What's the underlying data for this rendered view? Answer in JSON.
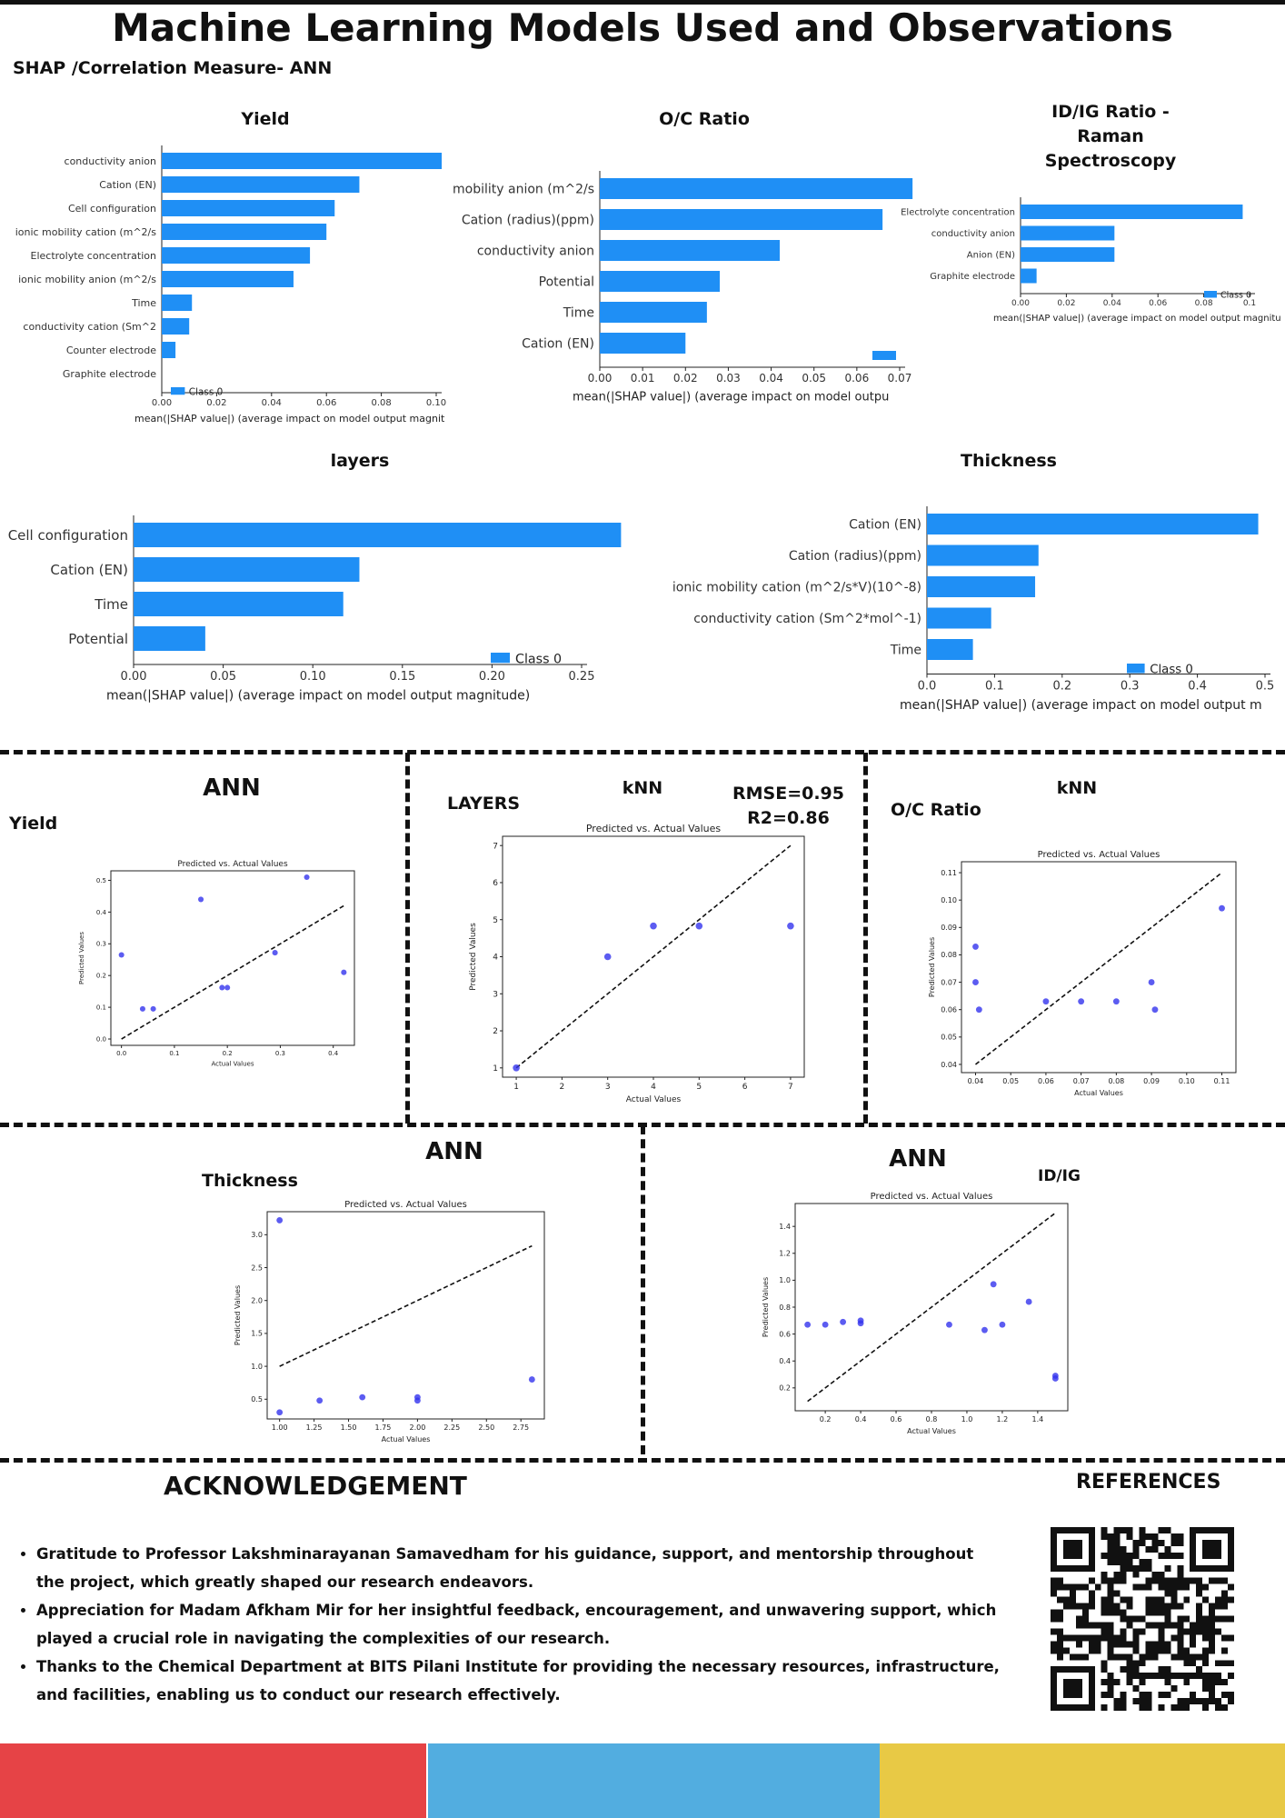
{
  "page": {
    "title": "Machine Learning Models Used and  Observations",
    "subtitle": "SHAP /Correlation Measure- ANN",
    "colors": {
      "bar": "#1f8ff5",
      "point": "#3333ee",
      "footer_red": "#e64346",
      "footer_blue": "#52ade0",
      "footer_yellow": "#e8c945"
    }
  },
  "shap_charts": [
    {
      "id": "yield",
      "title": "Yield",
      "xlabel": "mean(|SHAP value|) (average impact on model output magnit",
      "legend": "Class 0",
      "xticks": [
        "0.00",
        "0.02",
        "0.04",
        "0.06",
        "0.08",
        "0.10"
      ],
      "xmax": 0.1,
      "features": [
        "conductivity anion",
        "Cation (EN)",
        "Cell configuration",
        "ionic mobility cation (m^2/s",
        "Electrolyte concentration",
        "ionic mobility anion (m^2/s",
        "Time",
        "conductivity cation (Sm^2",
        "Counter electrode",
        "Graphite electrode"
      ],
      "values": [
        0.102,
        0.072,
        0.063,
        0.06,
        0.054,
        0.048,
        0.011,
        0.01,
        0.005,
        0.0
      ]
    },
    {
      "id": "oc",
      "title": "O/C Ratio",
      "xlabel": "mean(|SHAP value|) (average impact on model outpu",
      "legend": "",
      "xticks": [
        "0.00",
        "0.01",
        "0.02",
        "0.03",
        "0.04",
        "0.05",
        "0.06",
        "0.07"
      ],
      "xmax": 0.07,
      "features": [
        "mobility anion (m^2/s",
        "Cation (radius)(ppm)",
        "conductivity anion",
        "Potential",
        "Time",
        "Cation (EN)"
      ],
      "values": [
        0.073,
        0.066,
        0.042,
        0.028,
        0.025,
        0.02
      ]
    },
    {
      "id": "idig",
      "title": "ID/IG Ratio - Raman Spectroscopy",
      "title_lines": [
        "ID/IG Ratio -",
        "Raman",
        "Spectroscopy"
      ],
      "xlabel": "mean(|SHAP value|) (average impact on model output magnitu",
      "legend": "Class 0",
      "xticks": [
        "0.00",
        "0.02",
        "0.04",
        "0.06",
        "0.08",
        "0.1"
      ],
      "xmax": 0.1,
      "features": [
        "Electrolyte concentration",
        "conductivity anion",
        "Anion (EN)",
        "Graphite electrode"
      ],
      "values": [
        0.097,
        0.041,
        0.041,
        0.007
      ]
    },
    {
      "id": "layers",
      "title": "layers",
      "xlabel": "mean(|SHAP value|) (average impact on model output magnitude)",
      "legend": "Class 0",
      "xticks": [
        "0.00",
        "0.05",
        "0.10",
        "0.15",
        "0.20",
        "0.25"
      ],
      "xmax": 0.25,
      "features": [
        "Cell configuration",
        "Cation (EN)",
        "Time",
        "Potential"
      ],
      "values": [
        0.272,
        0.126,
        0.117,
        0.04
      ]
    },
    {
      "id": "thickness",
      "title": "Thickness",
      "xlabel": "mean(|SHAP value|) (average impact on model output m",
      "legend": "Class 0",
      "xticks": [
        "0.0",
        "0.1",
        "0.2",
        "0.3",
        "0.4",
        "0.5"
      ],
      "xmax": 0.5,
      "features": [
        "Cation (EN)",
        "Cation (radius)(ppm)",
        "ionic mobility cation (m^2/s*V)(10^-8)",
        "conductivity cation (Sm^2*mol^-1)",
        "Time"
      ],
      "values": [
        0.49,
        0.165,
        0.16,
        0.095,
        0.068
      ]
    }
  ],
  "scatter_panels": [
    {
      "id": "ann-yield",
      "model": "ANN",
      "target": "Yield",
      "metric": "",
      "plot_title": "Predicted vs. Actual Values",
      "xlabel": "Actual Values",
      "ylabel": "Predicted Values",
      "xlim": [
        -0.02,
        0.44
      ],
      "ylim": [
        -0.02,
        0.53
      ],
      "xticks": [
        0.0,
        0.1,
        0.2,
        0.3,
        0.4
      ],
      "yticks": [
        0.0,
        0.1,
        0.2,
        0.3,
        0.4,
        0.5
      ],
      "tick_labels_x": [
        "0.0",
        "0.1",
        "0.2",
        "0.3",
        "0.4"
      ],
      "tick_labels_y": [
        "0.0",
        "0.1",
        "0.2",
        "0.3",
        "0.4",
        "0.5"
      ],
      "line": [
        [
          0.0,
          0.0
        ],
        [
          0.42,
          0.42
        ]
      ],
      "points": [
        [
          0.0,
          0.265
        ],
        [
          0.04,
          0.095
        ],
        [
          0.06,
          0.095
        ],
        [
          0.15,
          0.44
        ],
        [
          0.19,
          0.162
        ],
        [
          0.2,
          0.162
        ],
        [
          0.29,
          0.272
        ],
        [
          0.35,
          0.51
        ],
        [
          0.42,
          0.21
        ]
      ]
    },
    {
      "id": "knn-layers",
      "model": "kNN",
      "target": "LAYERS",
      "metric": "RMSE=0.95\nR2=0.86",
      "metric_lines": [
        "RMSE=0.95",
        "R2=0.86"
      ],
      "plot_title": "Predicted vs. Actual Values",
      "xlabel": "Actual Values",
      "ylabel": "Predicted Values",
      "xlim": [
        0.7,
        7.3
      ],
      "ylim": [
        0.75,
        7.25
      ],
      "xticks": [
        1,
        2,
        3,
        4,
        5,
        6,
        7
      ],
      "yticks": [
        1,
        2,
        3,
        4,
        5,
        6,
        7
      ],
      "tick_labels_x": [
        "1",
        "2",
        "3",
        "4",
        "5",
        "6",
        "7"
      ],
      "tick_labels_y": [
        "1",
        "2",
        "3",
        "4",
        "5",
        "6",
        "7"
      ],
      "line": [
        [
          1,
          1
        ],
        [
          7,
          7
        ]
      ],
      "points": [
        [
          1,
          1.0
        ],
        [
          3,
          4.0
        ],
        [
          4,
          4.83
        ],
        [
          5,
          4.83
        ],
        [
          7,
          4.83
        ]
      ]
    },
    {
      "id": "knn-oc",
      "model": "kNN",
      "target": "O/C Ratio",
      "metric": "",
      "plot_title": "Predicted vs. Actual Values",
      "xlabel": "Actual Values",
      "ylabel": "Predicted Values",
      "xlim": [
        0.036,
        0.114
      ],
      "ylim": [
        0.037,
        0.114
      ],
      "xticks": [
        0.04,
        0.05,
        0.06,
        0.07,
        0.08,
        0.09,
        0.1,
        0.11
      ],
      "yticks": [
        0.04,
        0.05,
        0.06,
        0.07,
        0.08,
        0.09,
        0.1,
        0.11
      ],
      "tick_labels_x": [
        "0.04",
        "0.05",
        "0.06",
        "0.07",
        "0.08",
        "0.09",
        "0.10",
        "0.11"
      ],
      "tick_labels_y": [
        "0.04",
        "0.05",
        "0.06",
        "0.07",
        "0.08",
        "0.09",
        "0.10",
        "0.11"
      ],
      "line": [
        [
          0.04,
          0.04
        ],
        [
          0.11,
          0.11
        ]
      ],
      "points": [
        [
          0.04,
          0.083
        ],
        [
          0.04,
          0.07
        ],
        [
          0.041,
          0.06
        ],
        [
          0.06,
          0.063
        ],
        [
          0.07,
          0.063
        ],
        [
          0.08,
          0.063
        ],
        [
          0.09,
          0.07
        ],
        [
          0.091,
          0.06
        ],
        [
          0.11,
          0.097
        ]
      ]
    },
    {
      "id": "ann-thickness",
      "model": "ANN",
      "target": "Thickness",
      "metric": "",
      "plot_title": "Predicted vs. Actual Values",
      "xlabel": "Actual Values",
      "ylabel": "Predicted Values",
      "xlim": [
        0.91,
        2.92
      ],
      "ylim": [
        0.2,
        3.35
      ],
      "xticks": [
        1.0,
        1.25,
        1.5,
        1.75,
        2.0,
        2.25,
        2.5,
        2.75
      ],
      "yticks": [
        0.5,
        1.0,
        1.5,
        2.0,
        2.5,
        3.0
      ],
      "tick_labels_x": [
        "1.00",
        "1.25",
        "1.50",
        "1.75",
        "2.00",
        "2.25",
        "2.50",
        "2.75"
      ],
      "tick_labels_y": [
        "0.5",
        "1.0",
        "1.5",
        "2.0",
        "2.5",
        "3.0"
      ],
      "line": [
        [
          1.0,
          1.0
        ],
        [
          2.83,
          2.83
        ]
      ],
      "points": [
        [
          1.0,
          3.22
        ],
        [
          1.0,
          0.3
        ],
        [
          1.29,
          0.48
        ],
        [
          1.6,
          0.53
        ],
        [
          2.0,
          0.53
        ],
        [
          2.0,
          0.48
        ],
        [
          2.83,
          0.8
        ]
      ]
    },
    {
      "id": "ann-idig",
      "model": "ANN",
      "target": "ID/IG",
      "metric": "",
      "plot_title": "Predicted vs. Actual Values",
      "xlabel": "Actual Values",
      "ylabel": "Predicted Values",
      "xlim": [
        0.03,
        1.57
      ],
      "ylim": [
        0.03,
        1.57
      ],
      "xticks": [
        0.2,
        0.4,
        0.6,
        0.8,
        1.0,
        1.2,
        1.4
      ],
      "yticks": [
        0.2,
        0.4,
        0.6,
        0.8,
        1.0,
        1.2,
        1.4
      ],
      "tick_labels_x": [
        "0.2",
        "0.4",
        "0.6",
        "0.8",
        "1.0",
        "1.2",
        "1.4"
      ],
      "tick_labels_y": [
        "0.2",
        "0.4",
        "0.6",
        "0.8",
        "1.0",
        "1.2",
        "1.4"
      ],
      "line": [
        [
          0.1,
          0.1
        ],
        [
          1.5,
          1.5
        ]
      ],
      "points": [
        [
          0.1,
          0.67
        ],
        [
          0.2,
          0.67
        ],
        [
          0.3,
          0.69
        ],
        [
          0.4,
          0.7
        ],
        [
          0.4,
          0.68
        ],
        [
          0.9,
          0.67
        ],
        [
          1.1,
          0.63
        ],
        [
          1.15,
          0.97
        ],
        [
          1.2,
          0.67
        ],
        [
          1.35,
          0.84
        ],
        [
          1.5,
          0.29
        ],
        [
          1.5,
          0.27
        ]
      ]
    }
  ],
  "acknowledgement": {
    "title": "ACKNOWLEDGEMENT",
    "items": [
      "Gratitude to Professor Lakshminarayanan Samavedham for his guidance, support, and mentorship throughout the project, which greatly shaped our research endeavors.",
      " Appreciation for Madam Afkham Mir for her insightful feedback, encouragement, and unwavering support, which played a crucial role in navigating the complexities of our research.",
      "Thanks to the Chemical Department at BITS Pilani Institute for providing the necessary resources, infrastructure, and facilities, enabling us to conduct our research effectively."
    ]
  },
  "references": {
    "title": "REFERENCES",
    "qr_icon": "qr-code-icon"
  }
}
